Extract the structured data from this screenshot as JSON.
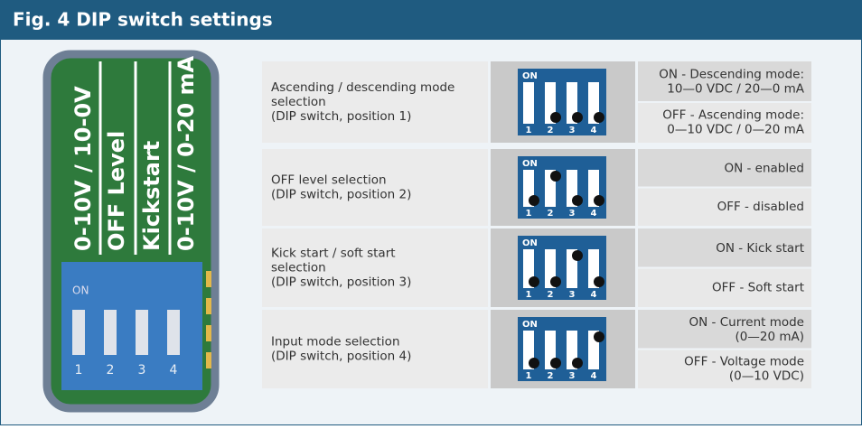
{
  "header": {
    "title": "Fig. 4 DIP switch settings"
  },
  "board": {
    "labels": [
      "0-10V / 10-0V",
      "OFF Level",
      "Kickstart",
      "0-10V / 0-20 mA"
    ],
    "switch_on": "ON",
    "numbers": [
      "1",
      "2",
      "3",
      "4"
    ]
  },
  "dip": {
    "on": "ON",
    "numbers": [
      "1",
      "2",
      "3",
      "4"
    ]
  },
  "table": {
    "rows": [
      {
        "description": [
          "Ascending / descending mode",
          "selection",
          "(DIP switch, position 1)"
        ],
        "options": [
          [
            "ON - Descending mode:",
            "10—0 VDC / 20—0 mA"
          ],
          [
            "OFF - Ascending mode:",
            "0—10 VDC / 0—20 mA"
          ]
        ]
      },
      {
        "description": [
          "OFF level selection",
          "(DIP switch, position 2)"
        ],
        "options": [
          [
            "ON - enabled"
          ],
          [
            "OFF - disabled"
          ]
        ]
      },
      {
        "description": [
          "Kick start / soft start",
          "selection",
          "(DIP switch, position 3)"
        ],
        "options": [
          [
            "ON - Kick start"
          ],
          [
            "OFF - Soft start"
          ]
        ]
      },
      {
        "description": [
          "Input mode selection",
          "(DIP switch, position 4)"
        ],
        "options": [
          [
            "ON - Current mode",
            "(0—20 mA)"
          ],
          [
            "OFF - Voltage mode",
            "(0—10 VDC)"
          ]
        ]
      }
    ]
  }
}
